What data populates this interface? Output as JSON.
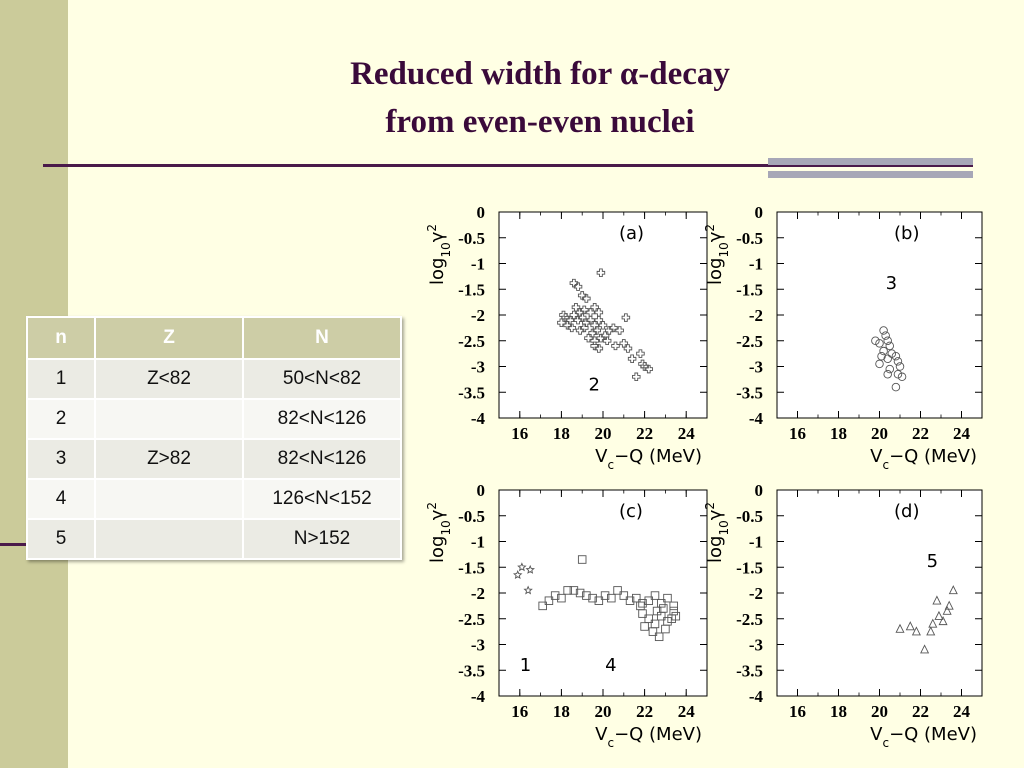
{
  "title": {
    "line1": "Reduced width  for α-decay",
    "line2": "from even-even nuclei"
  },
  "table": {
    "headers": [
      "n",
      "Z",
      "N"
    ],
    "rows": [
      [
        "1",
        "Z<82",
        "50<N<82"
      ],
      [
        "2",
        "",
        "82<N<126"
      ],
      [
        "3",
        "Z>82",
        "82<N<126"
      ],
      [
        "4",
        "",
        "126<N<152"
      ],
      [
        "5",
        "",
        "N>152"
      ]
    ]
  },
  "chart_data": [
    {
      "type": "scatter",
      "panel": "(a)",
      "ylabel": "log10 γ2",
      "xlabel": "Vc−Q (MeV)",
      "xlim": [
        15,
        25
      ],
      "ylim": [
        -4,
        0
      ],
      "xticks": [
        16,
        18,
        20,
        22,
        24
      ],
      "yticks": [
        "0",
        "-0.5",
        "-1",
        "-1.5",
        "-2",
        "-2.5",
        "-3",
        "-3.5",
        "-4"
      ],
      "annotations": [
        {
          "text": "2",
          "x": 19.3,
          "y": -3.35
        }
      ],
      "series": [
        {
          "marker": "cross",
          "points": [
            [
              18.6,
              -1.38
            ],
            [
              18.8,
              -1.45
            ],
            [
              19.0,
              -1.62
            ],
            [
              19.2,
              -1.68
            ],
            [
              18.7,
              -1.85
            ],
            [
              18.9,
              -1.95
            ],
            [
              19.1,
              -1.9
            ],
            [
              19.4,
              -1.95
            ],
            [
              19.6,
              -1.85
            ],
            [
              19.8,
              -1.95
            ],
            [
              18.2,
              -2.05
            ],
            [
              18.4,
              -2.1
            ],
            [
              18.6,
              -2.0
            ],
            [
              18.8,
              -2.1
            ],
            [
              19.0,
              -2.05
            ],
            [
              19.2,
              -2.15
            ],
            [
              19.4,
              -2.1
            ],
            [
              19.6,
              -2.2
            ],
            [
              19.8,
              -2.1
            ],
            [
              20.0,
              -2.2
            ],
            [
              18.0,
              -2.15
            ],
            [
              18.3,
              -2.2
            ],
            [
              18.5,
              -2.25
            ],
            [
              18.9,
              -2.3
            ],
            [
              19.1,
              -2.25
            ],
            [
              19.5,
              -2.35
            ],
            [
              19.7,
              -2.3
            ],
            [
              20.1,
              -2.4
            ],
            [
              20.3,
              -2.3
            ],
            [
              20.5,
              -2.25
            ],
            [
              20.8,
              -2.3
            ],
            [
              19.3,
              -2.45
            ],
            [
              19.6,
              -2.5
            ],
            [
              19.9,
              -2.45
            ],
            [
              20.2,
              -2.5
            ],
            [
              20.6,
              -2.6
            ],
            [
              21.0,
              -2.55
            ],
            [
              21.2,
              -2.65
            ],
            [
              19.8,
              -2.65
            ],
            [
              21.1,
              -2.05
            ],
            [
              19.9,
              -1.18
            ],
            [
              21.4,
              -2.85
            ],
            [
              21.8,
              -2.75
            ],
            [
              21.9,
              -2.95
            ],
            [
              22.0,
              -3.0
            ],
            [
              21.6,
              -3.2
            ],
            [
              22.2,
              -3.05
            ],
            [
              18.1,
              -2.0
            ],
            [
              19.6,
              -2.6
            ]
          ]
        }
      ]
    },
    {
      "type": "scatter",
      "panel": "(b)",
      "ylabel": "log10 γ2",
      "xlabel": "Vc−Q (MeV)",
      "xlim": [
        15,
        25
      ],
      "ylim": [
        -4,
        0
      ],
      "xticks": [
        16,
        18,
        20,
        22,
        24
      ],
      "yticks": [
        "0",
        "-0.5",
        "-1",
        "-1.5",
        "-2",
        "-2.5",
        "-3",
        "-3.5",
        "-4"
      ],
      "annotations": [
        {
          "text": "3",
          "x": 20.3,
          "y": -1.38
        }
      ],
      "series": [
        {
          "marker": "circle",
          "points": [
            [
              20.2,
              -2.3
            ],
            [
              20.3,
              -2.4
            ],
            [
              20.4,
              -2.5
            ],
            [
              19.8,
              -2.5
            ],
            [
              20.0,
              -2.55
            ],
            [
              20.5,
              -2.6
            ],
            [
              20.2,
              -2.7
            ],
            [
              20.6,
              -2.75
            ],
            [
              20.8,
              -2.8
            ],
            [
              20.9,
              -2.9
            ],
            [
              20.4,
              -2.85
            ],
            [
              20.0,
              -2.95
            ],
            [
              21.0,
              -3.0
            ],
            [
              20.5,
              -3.05
            ],
            [
              20.9,
              -3.15
            ],
            [
              21.1,
              -3.2
            ],
            [
              20.4,
              -3.15
            ],
            [
              20.8,
              -3.4
            ],
            [
              20.1,
              -2.8
            ]
          ]
        }
      ]
    },
    {
      "type": "scatter",
      "panel": "(c)",
      "ylabel": "log10 γ2",
      "xlabel": "Vc−Q (MeV)",
      "xlim": [
        15,
        25
      ],
      "ylim": [
        -4,
        0
      ],
      "xticks": [
        16,
        18,
        20,
        22,
        24
      ],
      "yticks": [
        "0",
        "-0.5",
        "-1",
        "-1.5",
        "-2",
        "-2.5",
        "-3",
        "-3.5",
        "-4"
      ],
      "annotations": [
        {
          "text": "1",
          "x": 16.0,
          "y": -3.4
        },
        {
          "text": "4",
          "x": 20.1,
          "y": -3.4
        }
      ],
      "series": [
        {
          "marker": "star",
          "points": [
            [
              15.9,
              -1.65
            ],
            [
              16.1,
              -1.5
            ],
            [
              16.5,
              -1.55
            ],
            [
              16.4,
              -1.95
            ]
          ]
        },
        {
          "marker": "square",
          "points": [
            [
              19.0,
              -1.35
            ],
            [
              17.1,
              -2.25
            ],
            [
              17.4,
              -2.15
            ],
            [
              17.7,
              -2.05
            ],
            [
              18.0,
              -2.1
            ],
            [
              18.3,
              -1.95
            ],
            [
              18.6,
              -1.95
            ],
            [
              18.9,
              -2.0
            ],
            [
              19.2,
              -2.05
            ],
            [
              19.5,
              -2.1
            ],
            [
              19.8,
              -2.15
            ],
            [
              20.1,
              -2.05
            ],
            [
              20.4,
              -2.1
            ],
            [
              20.7,
              -1.95
            ],
            [
              21.0,
              -2.05
            ],
            [
              21.3,
              -2.15
            ],
            [
              21.6,
              -2.1
            ],
            [
              21.9,
              -2.2
            ],
            [
              22.2,
              -2.15
            ],
            [
              22.5,
              -2.05
            ],
            [
              22.8,
              -2.2
            ],
            [
              23.1,
              -2.1
            ],
            [
              23.4,
              -2.25
            ],
            [
              21.9,
              -2.4
            ],
            [
              22.2,
              -2.5
            ],
            [
              22.5,
              -2.6
            ],
            [
              22.8,
              -2.45
            ],
            [
              23.1,
              -2.55
            ],
            [
              23.4,
              -2.35
            ],
            [
              22.0,
              -2.65
            ],
            [
              22.4,
              -2.75
            ],
            [
              22.7,
              -2.85
            ],
            [
              23.0,
              -2.7
            ],
            [
              23.3,
              -2.5
            ],
            [
              22.6,
              -2.35
            ],
            [
              22.9,
              -2.3
            ],
            [
              23.5,
              -2.45
            ],
            [
              21.8,
              -2.25
            ]
          ]
        }
      ]
    },
    {
      "type": "scatter",
      "panel": "(d)",
      "ylabel": "log10 γ2",
      "xlabel": "Vc−Q (MeV)",
      "xlim": [
        15,
        25
      ],
      "ylim": [
        -4,
        0
      ],
      "xticks": [
        16,
        18,
        20,
        22,
        24
      ],
      "yticks": [
        "0",
        "-0.5",
        "-1",
        "-1.5",
        "-2",
        "-2.5",
        "-3",
        "-3.5",
        "-4"
      ],
      "annotations": [
        {
          "text": "5",
          "x": 22.3,
          "y": -1.38
        }
      ],
      "series": [
        {
          "marker": "triangle",
          "points": [
            [
              21.0,
              -2.7
            ],
            [
              21.5,
              -2.65
            ],
            [
              21.8,
              -2.75
            ],
            [
              22.2,
              -3.1
            ],
            [
              22.5,
              -2.75
            ],
            [
              22.6,
              -2.6
            ],
            [
              22.9,
              -2.45
            ],
            [
              23.1,
              -2.55
            ],
            [
              23.3,
              -2.35
            ],
            [
              23.4,
              -2.25
            ],
            [
              23.6,
              -1.95
            ],
            [
              22.8,
              -2.15
            ]
          ]
        }
      ]
    }
  ],
  "colors": {
    "background": "#FFFFE4",
    "left_bar": "#CBCB9A",
    "title": "#3A0A3A",
    "rule": "#4A1A4A",
    "table_header": "#CDCDA6",
    "plot_background": "#FFFFFF"
  }
}
